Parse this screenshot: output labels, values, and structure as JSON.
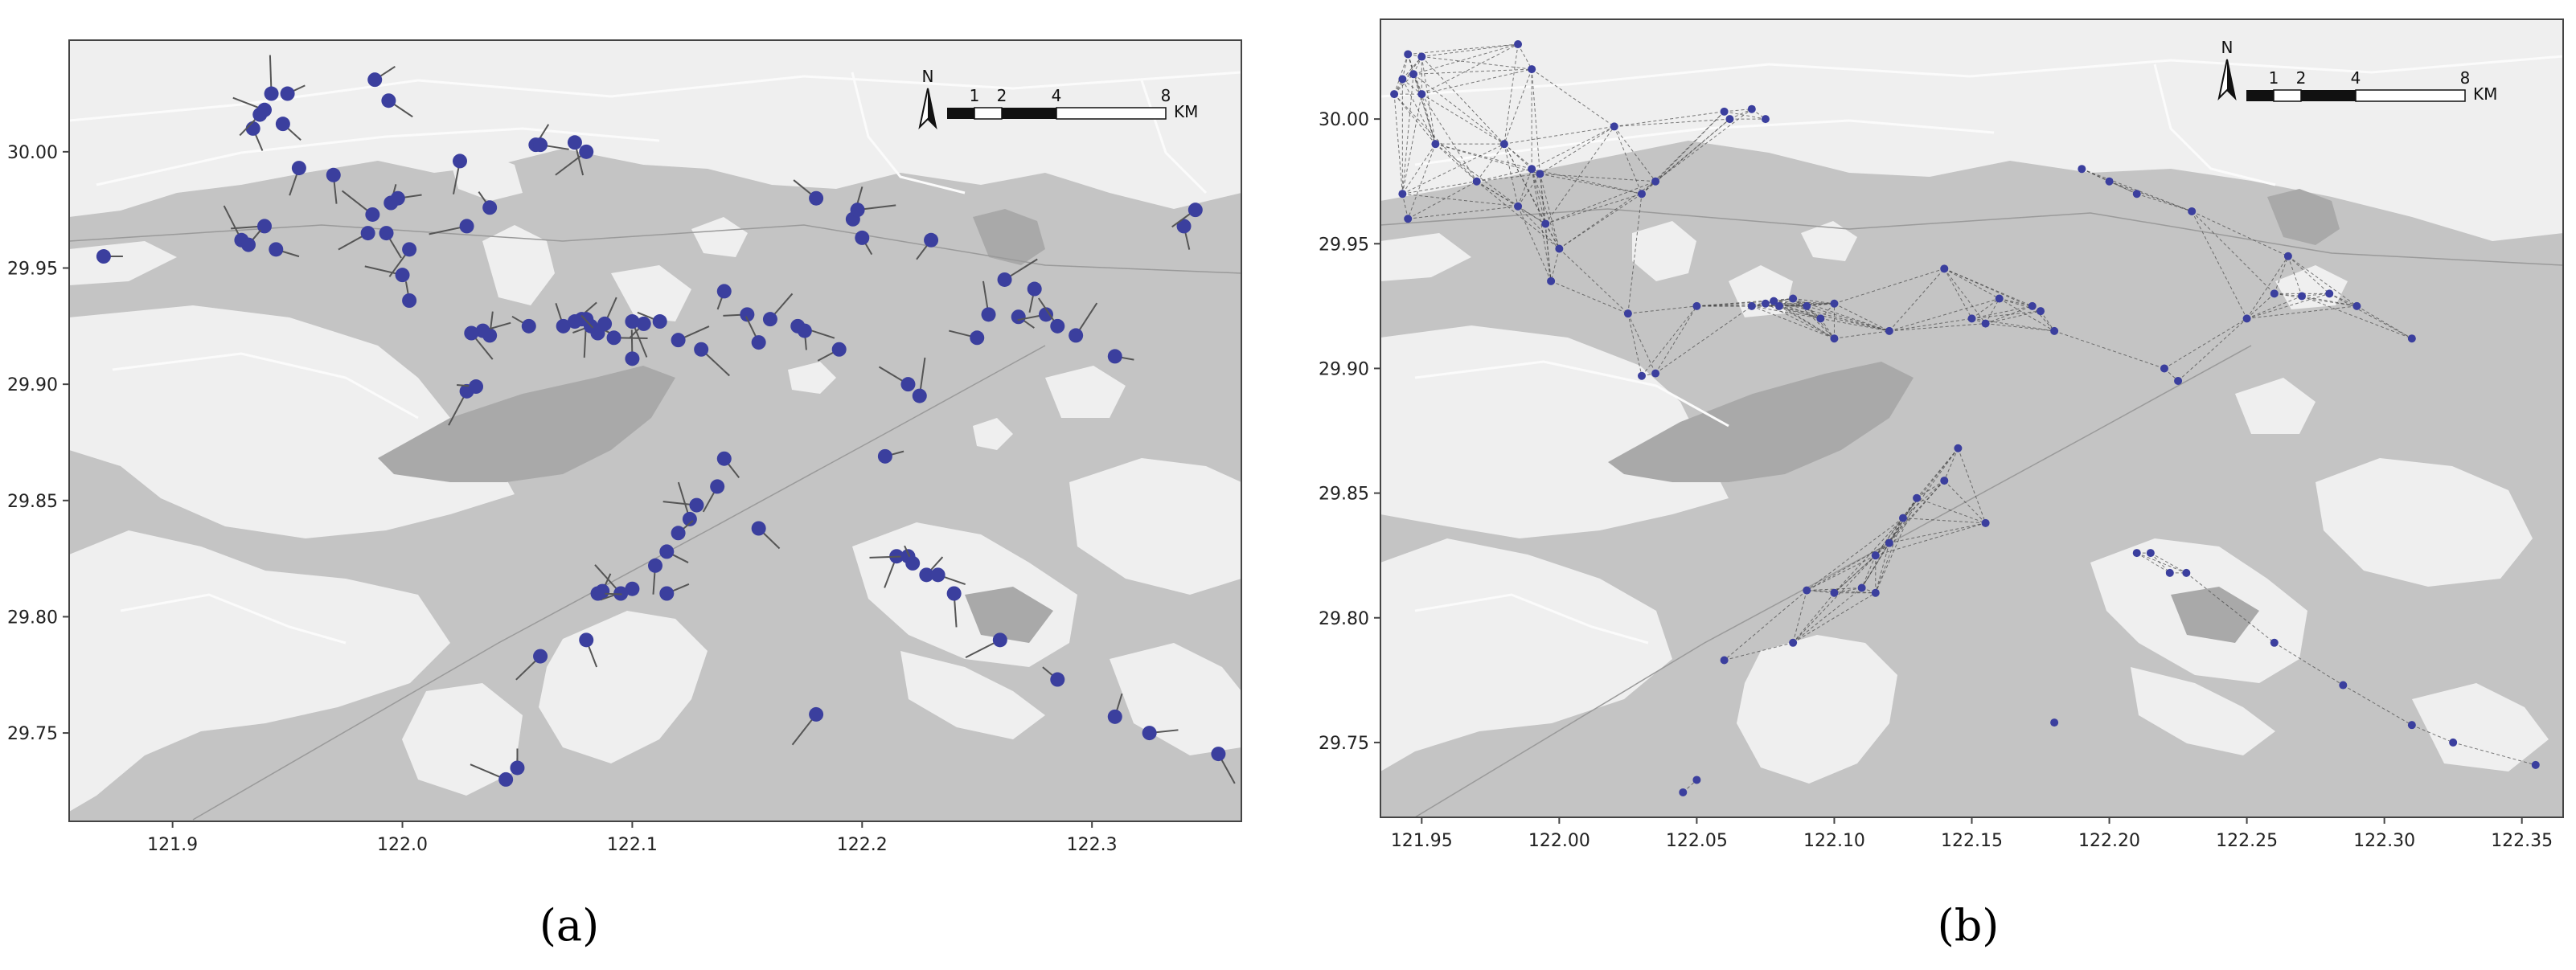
{
  "colors": {
    "land": "#efefef",
    "water": "#c4c4c4",
    "mountain": "#a9a9a9",
    "road": "#fbfbfb",
    "point": "#3b3f9e",
    "heading": "#555555",
    "link": "#444444"
  },
  "map_scale": {
    "north_label": "N",
    "unit": "KM",
    "ticks_a": [
      "1",
      "2",
      "4",
      "8"
    ],
    "ticks_b": [
      "1",
      "2",
      "4",
      "8"
    ]
  },
  "chart_data": [
    {
      "type": "scatter",
      "caption": "(a)",
      "description_of_marks": "vessel positions with heading lines",
      "xlim": [
        121.855,
        122.365
      ],
      "ylim": [
        29.712,
        30.048
      ],
      "xticks": [
        "121.9",
        "122.0",
        "122.1",
        "122.2",
        "122.3"
      ],
      "xtick_values": [
        121.9,
        122.0,
        122.1,
        122.2,
        122.3
      ],
      "yticks": [
        "30.00",
        "29.95",
        "29.90",
        "29.85",
        "29.80",
        "29.75"
      ],
      "ytick_values": [
        30.0,
        29.95,
        29.9,
        29.85,
        29.8,
        29.75
      ],
      "points": [
        [
          121.87,
          29.955
        ],
        [
          121.935,
          30.01
        ],
        [
          121.938,
          30.016
        ],
        [
          121.94,
          30.018
        ],
        [
          121.943,
          30.025
        ],
        [
          121.95,
          30.025
        ],
        [
          121.948,
          30.012
        ],
        [
          121.955,
          29.993
        ],
        [
          121.94,
          29.968
        ],
        [
          121.93,
          29.962
        ],
        [
          121.933,
          29.96
        ],
        [
          121.945,
          29.958
        ],
        [
          121.97,
          29.99
        ],
        [
          121.985,
          29.965
        ],
        [
          121.987,
          29.973
        ],
        [
          121.995,
          29.978
        ],
        [
          121.998,
          29.98
        ],
        [
          121.993,
          29.965
        ],
        [
          122.003,
          29.958
        ],
        [
          122.0,
          29.947
        ],
        [
          122.003,
          29.936
        ],
        [
          121.988,
          30.031
        ],
        [
          121.994,
          30.022
        ],
        [
          122.025,
          29.996
        ],
        [
          122.028,
          29.968
        ],
        [
          122.038,
          29.976
        ],
        [
          122.058,
          30.003
        ],
        [
          122.06,
          30.003
        ],
        [
          122.075,
          30.004
        ],
        [
          122.08,
          30.0
        ],
        [
          122.055,
          29.925
        ],
        [
          122.038,
          29.921
        ],
        [
          122.035,
          29.923
        ],
        [
          122.03,
          29.922
        ],
        [
          122.028,
          29.897
        ],
        [
          122.032,
          29.899
        ],
        [
          122.07,
          29.925
        ],
        [
          122.075,
          29.927
        ],
        [
          122.078,
          29.928
        ],
        [
          122.08,
          29.928
        ],
        [
          122.082,
          29.925
        ],
        [
          122.085,
          29.922
        ],
        [
          122.088,
          29.926
        ],
        [
          122.092,
          29.92
        ],
        [
          122.1,
          29.927
        ],
        [
          122.105,
          29.926
        ],
        [
          122.112,
          29.927
        ],
        [
          122.1,
          29.911
        ],
        [
          122.12,
          29.919
        ],
        [
          122.13,
          29.915
        ],
        [
          122.14,
          29.94
        ],
        [
          122.15,
          29.93
        ],
        [
          122.155,
          29.918
        ],
        [
          122.16,
          29.928
        ],
        [
          122.172,
          29.925
        ],
        [
          122.175,
          29.923
        ],
        [
          122.19,
          29.915
        ],
        [
          122.18,
          29.98
        ],
        [
          122.196,
          29.971
        ],
        [
          122.198,
          29.975
        ],
        [
          122.2,
          29.963
        ],
        [
          122.23,
          29.962
        ],
        [
          122.25,
          29.92
        ],
        [
          122.255,
          29.93
        ],
        [
          122.262,
          29.945
        ],
        [
          122.268,
          29.929
        ],
        [
          122.275,
          29.941
        ],
        [
          122.28,
          29.93
        ],
        [
          122.285,
          29.925
        ],
        [
          122.293,
          29.921
        ],
        [
          122.31,
          29.912
        ],
        [
          122.34,
          29.968
        ],
        [
          122.345,
          29.975
        ],
        [
          122.22,
          29.9
        ],
        [
          122.225,
          29.895
        ],
        [
          122.21,
          29.869
        ],
        [
          122.14,
          29.868
        ],
        [
          122.137,
          29.856
        ],
        [
          122.128,
          29.848
        ],
        [
          122.125,
          29.842
        ],
        [
          122.12,
          29.836
        ],
        [
          122.115,
          29.828
        ],
        [
          122.11,
          29.822
        ],
        [
          122.1,
          29.812
        ],
        [
          122.095,
          29.81
        ],
        [
          122.087,
          29.811
        ],
        [
          122.085,
          29.81
        ],
        [
          122.08,
          29.79
        ],
        [
          122.06,
          29.783
        ],
        [
          122.045,
          29.73
        ],
        [
          122.05,
          29.735
        ],
        [
          122.115,
          29.81
        ],
        [
          122.155,
          29.838
        ],
        [
          122.215,
          29.826
        ],
        [
          122.22,
          29.826
        ],
        [
          122.222,
          29.823
        ],
        [
          122.228,
          29.818
        ],
        [
          122.233,
          29.818
        ],
        [
          122.24,
          29.81
        ],
        [
          122.26,
          29.79
        ],
        [
          122.285,
          29.773
        ],
        [
          122.31,
          29.757
        ],
        [
          122.325,
          29.75
        ],
        [
          122.355,
          29.741
        ],
        [
          122.18,
          29.758
        ]
      ]
    },
    {
      "type": "scatter",
      "caption": "(b)",
      "description_of_marks": "vessel positions with dashed interaction links",
      "xlim": [
        121.935,
        122.365
      ],
      "ylim": [
        29.72,
        30.04
      ],
      "xticks": [
        "121.95",
        "122.00",
        "122.05",
        "122.10",
        "122.15",
        "122.20",
        "122.25",
        "122.30",
        "122.35"
      ],
      "xtick_values": [
        121.95,
        122.0,
        122.05,
        122.1,
        122.15,
        122.2,
        122.25,
        122.3,
        122.35
      ],
      "yticks": [
        "30.00",
        "29.95",
        "29.90",
        "29.85",
        "29.80",
        "29.75"
      ],
      "ytick_values": [
        30.0,
        29.95,
        29.9,
        29.85,
        29.8,
        29.75
      ],
      "points": [
        [
          121.94,
          30.01
        ],
        [
          121.943,
          30.016
        ],
        [
          121.945,
          30.026
        ],
        [
          121.947,
          30.018
        ],
        [
          121.95,
          30.025
        ],
        [
          121.955,
          29.99
        ],
        [
          121.943,
          29.97
        ],
        [
          121.945,
          29.96
        ],
        [
          121.95,
          30.01
        ],
        [
          121.985,
          30.03
        ],
        [
          121.99,
          30.02
        ],
        [
          121.97,
          29.975
        ],
        [
          121.98,
          29.99
        ],
        [
          121.985,
          29.965
        ],
        [
          121.99,
          29.98
        ],
        [
          121.993,
          29.978
        ],
        [
          121.995,
          29.958
        ],
        [
          122.0,
          29.948
        ],
        [
          121.997,
          29.935
        ],
        [
          122.02,
          29.997
        ],
        [
          122.025,
          29.922
        ],
        [
          122.03,
          29.97
        ],
        [
          122.035,
          29.975
        ],
        [
          122.03,
          29.897
        ],
        [
          122.035,
          29.898
        ],
        [
          122.05,
          29.925
        ],
        [
          122.06,
          30.003
        ],
        [
          122.062,
          30.0
        ],
        [
          122.07,
          30.004
        ],
        [
          122.075,
          30.0
        ],
        [
          122.07,
          29.925
        ],
        [
          122.075,
          29.926
        ],
        [
          122.078,
          29.927
        ],
        [
          122.08,
          29.925
        ],
        [
          122.085,
          29.928
        ],
        [
          122.09,
          29.925
        ],
        [
          122.095,
          29.92
        ],
        [
          122.1,
          29.912
        ],
        [
          122.1,
          29.926
        ],
        [
          122.12,
          29.915
        ],
        [
          122.14,
          29.94
        ],
        [
          122.15,
          29.92
        ],
        [
          122.155,
          29.918
        ],
        [
          122.16,
          29.928
        ],
        [
          122.172,
          29.925
        ],
        [
          122.175,
          29.923
        ],
        [
          122.18,
          29.915
        ],
        [
          122.19,
          29.98
        ],
        [
          122.2,
          29.975
        ],
        [
          122.21,
          29.97
        ],
        [
          122.22,
          29.9
        ],
        [
          122.225,
          29.895
        ],
        [
          122.23,
          29.963
        ],
        [
          122.25,
          29.92
        ],
        [
          122.26,
          29.93
        ],
        [
          122.265,
          29.945
        ],
        [
          122.27,
          29.929
        ],
        [
          122.28,
          29.93
        ],
        [
          122.29,
          29.925
        ],
        [
          122.31,
          29.912
        ],
        [
          122.145,
          29.868
        ],
        [
          122.14,
          29.855
        ],
        [
          122.13,
          29.848
        ],
        [
          122.125,
          29.84
        ],
        [
          122.12,
          29.83
        ],
        [
          122.115,
          29.825
        ],
        [
          122.11,
          29.812
        ],
        [
          122.1,
          29.81
        ],
        [
          122.09,
          29.811
        ],
        [
          122.085,
          29.79
        ],
        [
          122.06,
          29.783
        ],
        [
          122.115,
          29.81
        ],
        [
          122.155,
          29.838
        ],
        [
          122.21,
          29.826
        ],
        [
          122.215,
          29.826
        ],
        [
          122.222,
          29.818
        ],
        [
          122.228,
          29.818
        ],
        [
          122.26,
          29.79
        ],
        [
          122.285,
          29.773
        ],
        [
          122.31,
          29.757
        ],
        [
          122.325,
          29.75
        ],
        [
          122.355,
          29.741
        ],
        [
          122.18,
          29.758
        ],
        [
          122.045,
          29.73
        ],
        [
          122.05,
          29.735
        ]
      ]
    }
  ]
}
